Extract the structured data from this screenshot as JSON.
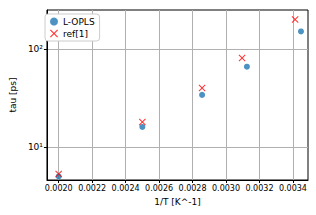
{
  "chart_data": {
    "type": "scatter",
    "x_label": "1/T [K^-1]",
    "y_label": "tau [ps]",
    "log": "y",
    "grid": true,
    "legend": "upper left",
    "xlim": [
      0.00193,
      0.00349
    ],
    "xticks": [
      {
        "value": 0.002,
        "label": "0.0020"
      },
      {
        "value": 0.0022,
        "label": "0.0022"
      },
      {
        "value": 0.0024,
        "label": "0.0024"
      },
      {
        "value": 0.0026,
        "label": "0.0026"
      },
      {
        "value": 0.0028,
        "label": "0.0028"
      },
      {
        "value": 0.003,
        "label": "0.0030"
      },
      {
        "value": 0.0032,
        "label": "0.0032"
      },
      {
        "value": 0.0034,
        "label": "0.0034"
      }
    ],
    "ylim": [
      4.6,
      250
    ],
    "yticks": [
      {
        "value": 10,
        "label": "10¹"
      },
      {
        "value": 100,
        "label": "10²"
      }
    ],
    "series": [
      {
        "name": "L-OPLS",
        "color": "#1f77b4",
        "marker": "circle",
        "x": [
          0.002,
          0.0025,
          0.002857,
          0.003125,
          0.003448
        ],
        "values": [
          5.0,
          16,
          34,
          66,
          151
        ]
      },
      {
        "name": "ref[1]",
        "color": "#ff0000",
        "marker": "x",
        "x": [
          0.002,
          0.0025,
          0.002857,
          0.003096,
          0.003413
        ],
        "values": [
          5.3,
          18,
          40,
          81,
          200
        ]
      }
    ]
  }
}
